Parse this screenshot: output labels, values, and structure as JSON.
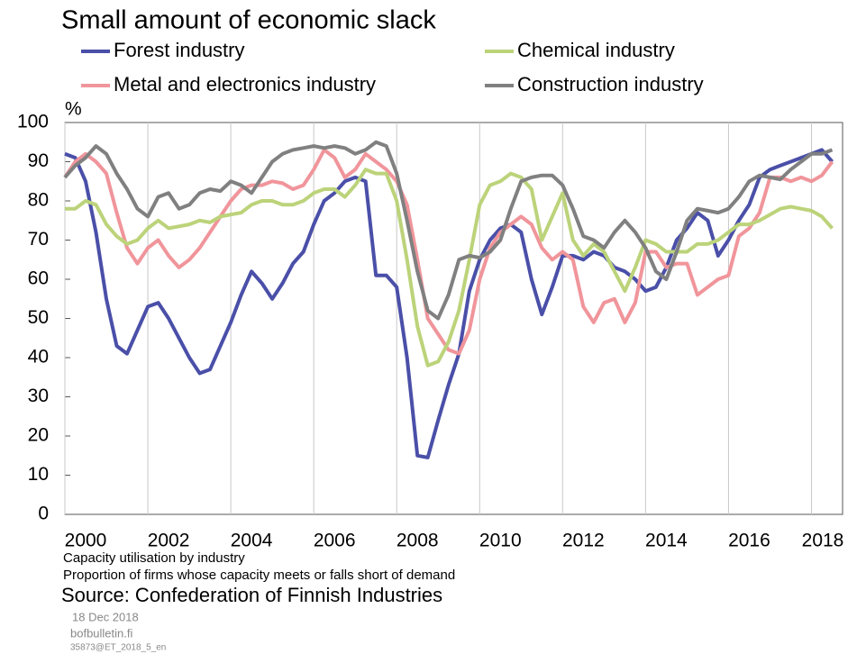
{
  "chart_data": {
    "type": "line",
    "title": "Small amount of economic slack",
    "y_unit": "%",
    "subtitle": "Capacity utilisation by industry",
    "caption": "Proportion of firms whose capacity meets or falls short of demand",
    "source": "Source: Confederation of Finnish Industries",
    "date": "18 Dec 2018",
    "site": "bofbulletin.fi",
    "code": "35873@ET_2018_5_en",
    "x": [
      2000,
      2000.25,
      2000.5,
      2000.75,
      2001,
      2001.25,
      2001.5,
      2001.75,
      2002,
      2002.25,
      2002.5,
      2002.75,
      2003,
      2003.25,
      2003.5,
      2003.75,
      2004,
      2004.25,
      2004.5,
      2004.75,
      2005,
      2005.25,
      2005.5,
      2005.75,
      2006,
      2006.25,
      2006.5,
      2006.75,
      2007,
      2007.25,
      2007.5,
      2007.75,
      2008,
      2008.25,
      2008.5,
      2008.75,
      2009,
      2009.25,
      2009.5,
      2009.75,
      2010,
      2010.25,
      2010.5,
      2010.75,
      2011,
      2011.25,
      2011.5,
      2011.75,
      2012,
      2012.25,
      2012.5,
      2012.75,
      2013,
      2013.25,
      2013.5,
      2013.75,
      2014,
      2014.25,
      2014.5,
      2014.75,
      2015,
      2015.25,
      2015.5,
      2015.75,
      2016,
      2016.25,
      2016.5,
      2016.75,
      2017,
      2017.25,
      2017.5,
      2017.75,
      2018,
      2018.25,
      2018.5
    ],
    "series": [
      {
        "name": "Forest industry",
        "color": "#4a4fa8",
        "values": [
          92,
          91,
          85,
          72,
          55,
          43,
          41,
          47,
          53,
          54,
          50,
          45,
          40,
          36,
          37,
          43,
          49,
          56,
          62,
          59,
          55,
          59,
          64,
          67,
          74,
          80,
          82,
          85,
          86,
          85,
          61,
          61,
          58,
          40,
          15,
          14.5,
          24,
          33,
          41,
          57,
          65,
          70,
          73,
          74,
          72,
          60,
          51,
          58,
          66,
          66,
          65,
          67,
          66,
          63,
          62,
          60,
          57,
          58,
          63,
          70,
          73,
          77,
          75,
          66,
          70,
          75,
          79,
          86,
          88,
          89,
          90,
          91,
          92,
          93,
          90
        ]
      },
      {
        "name": "Metal and electronics industry",
        "color": "#f0959b",
        "values": [
          86,
          90,
          92,
          90,
          87,
          77,
          68,
          64,
          68,
          70,
          66,
          63,
          65,
          68,
          72,
          76,
          80,
          83,
          84,
          84,
          85,
          84.5,
          83,
          84,
          88,
          93,
          91,
          86,
          88,
          92,
          90,
          88,
          85,
          79,
          65,
          50,
          46,
          42,
          41,
          47,
          60,
          68,
          72,
          74,
          76,
          74,
          68,
          65,
          67,
          65,
          53,
          49,
          54,
          55,
          49,
          54,
          67,
          67,
          63,
          64,
          64,
          56,
          58,
          60,
          61,
          71,
          73,
          77,
          86,
          86,
          85,
          86,
          85,
          86.5,
          90
        ]
      },
      {
        "name": "Chemical industry",
        "color": "#bcd37a",
        "values": [
          78,
          78,
          80,
          79,
          74,
          71,
          69,
          70,
          73,
          75,
          73,
          73.5,
          74,
          75,
          74.5,
          76,
          76.5,
          77,
          79,
          80,
          80,
          79,
          79,
          80,
          82,
          83,
          83,
          81,
          84,
          88,
          87,
          87,
          80,
          65,
          48,
          38,
          39,
          44,
          52,
          65,
          79,
          84,
          85,
          87,
          86,
          83,
          70,
          76,
          82,
          70,
          66,
          69,
          67,
          62,
          57,
          63,
          70,
          69,
          67,
          67,
          67,
          69,
          69,
          70,
          72,
          74,
          74,
          75,
          76.5,
          78,
          78.5,
          78,
          77.5,
          76,
          73
        ]
      },
      {
        "name": "Construction industry",
        "color": "#808080",
        "values": [
          86,
          89,
          91,
          94,
          92,
          87,
          83,
          78,
          76,
          81,
          82,
          78,
          79,
          82,
          83,
          82.5,
          85,
          84,
          82,
          86,
          90,
          92,
          93,
          93.5,
          94,
          93.5,
          94,
          93.5,
          92,
          93,
          95,
          94,
          87,
          75,
          62,
          52,
          50,
          56,
          65,
          66,
          65.5,
          67,
          70,
          78,
          85,
          86,
          86.5,
          86.5,
          84,
          78,
          71,
          70,
          68,
          72,
          75,
          72,
          68,
          62,
          60,
          67,
          75,
          78,
          77.5,
          77,
          78,
          81,
          85,
          86.5,
          86,
          85.5,
          88,
          90,
          92,
          92,
          93
        ]
      }
    ],
    "xlim": [
      2000,
      2018.75
    ],
    "xticks": [
      2000,
      2002,
      2004,
      2006,
      2008,
      2010,
      2012,
      2014,
      2016,
      2018
    ],
    "ylim": [
      0,
      100
    ],
    "yticks": [
      0,
      10,
      20,
      30,
      40,
      50,
      60,
      70,
      80,
      90,
      100
    ],
    "grid": "x"
  }
}
